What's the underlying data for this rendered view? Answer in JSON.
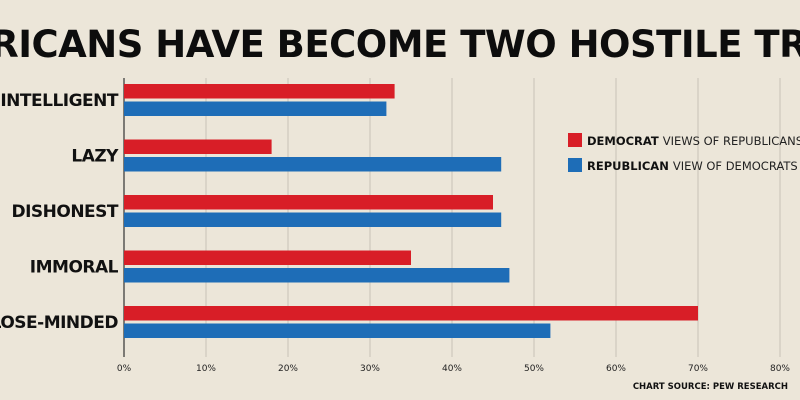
{
  "colors": {
    "democrat": "#d81e27",
    "republican": "#1e6db7",
    "grid": "#c9c3b6",
    "axis": "#333333"
  },
  "chart_data": {
    "type": "bar",
    "orientation": "horizontal",
    "title": "AMERICANS HAVE BECOME TWO HOSTILE TRIBES",
    "categories": [
      "UNINTELLIGENT",
      "LAZY",
      "DISHONEST",
      "IMMORAL",
      "CLOSE-MINDED"
    ],
    "series": [
      {
        "key": "democrat",
        "legend_bold": "DEMOCRAT",
        "legend_rest": "VIEWS OF REPUBLICANS",
        "values": [
          33,
          18,
          45,
          35,
          70
        ]
      },
      {
        "key": "republican",
        "legend_bold": "REPUBLICAN",
        "legend_rest": "VIEW OF DEMOCRATS",
        "values": [
          32,
          46,
          46,
          47,
          52
        ]
      }
    ],
    "xlim": [
      0,
      80
    ],
    "xticks": [
      0,
      10,
      20,
      30,
      40,
      50,
      60,
      70,
      80
    ],
    "tick_suffix": "%",
    "grid": true,
    "legend_position": "right",
    "source": "CHART SOURCE: PEW RESEARCH"
  }
}
